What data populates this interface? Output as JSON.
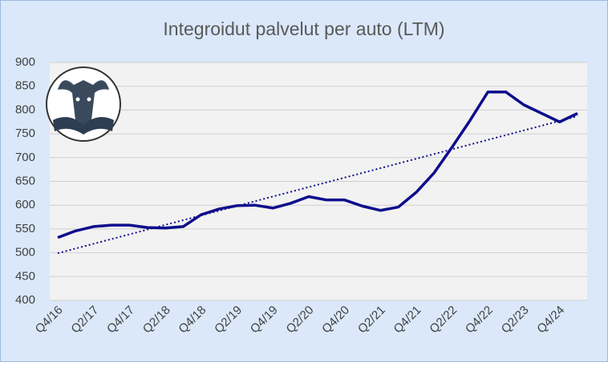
{
  "chart_data": {
    "type": "line",
    "title": "Integroidut palvelut per auto (LTM)",
    "categories": [
      "Q4/16",
      null,
      "Q2/17",
      null,
      "Q4/17",
      null,
      "Q2/18",
      null,
      "Q4/18",
      null,
      "Q2/19",
      null,
      "Q4/19",
      null,
      "Q2/20",
      null,
      "Q4/20",
      null,
      "Q2/21",
      null,
      "Q4/21",
      null,
      "Q2/22",
      null,
      "Q4/22",
      null,
      "Q2/23",
      null,
      "Q4/24",
      null
    ],
    "series": [
      {
        "color": "#0d0d8c",
        "values": [
          532,
          546,
          555,
          558,
          558,
          553,
          552,
          555,
          580,
          592,
          599,
          600,
          594,
          604,
          618,
          611,
          611,
          598,
          589,
          596,
          627,
          668,
          722,
          778,
          838,
          838,
          811,
          793,
          775,
          793
        ]
      }
    ],
    "trendline": {
      "color": "#0d0d8c",
      "values": [
        499,
        787
      ]
    },
    "ylim": [
      400,
      900
    ],
    "yticks": [
      400,
      450,
      500,
      550,
      600,
      650,
      700,
      750,
      800,
      850,
      900
    ],
    "grid": true
  }
}
